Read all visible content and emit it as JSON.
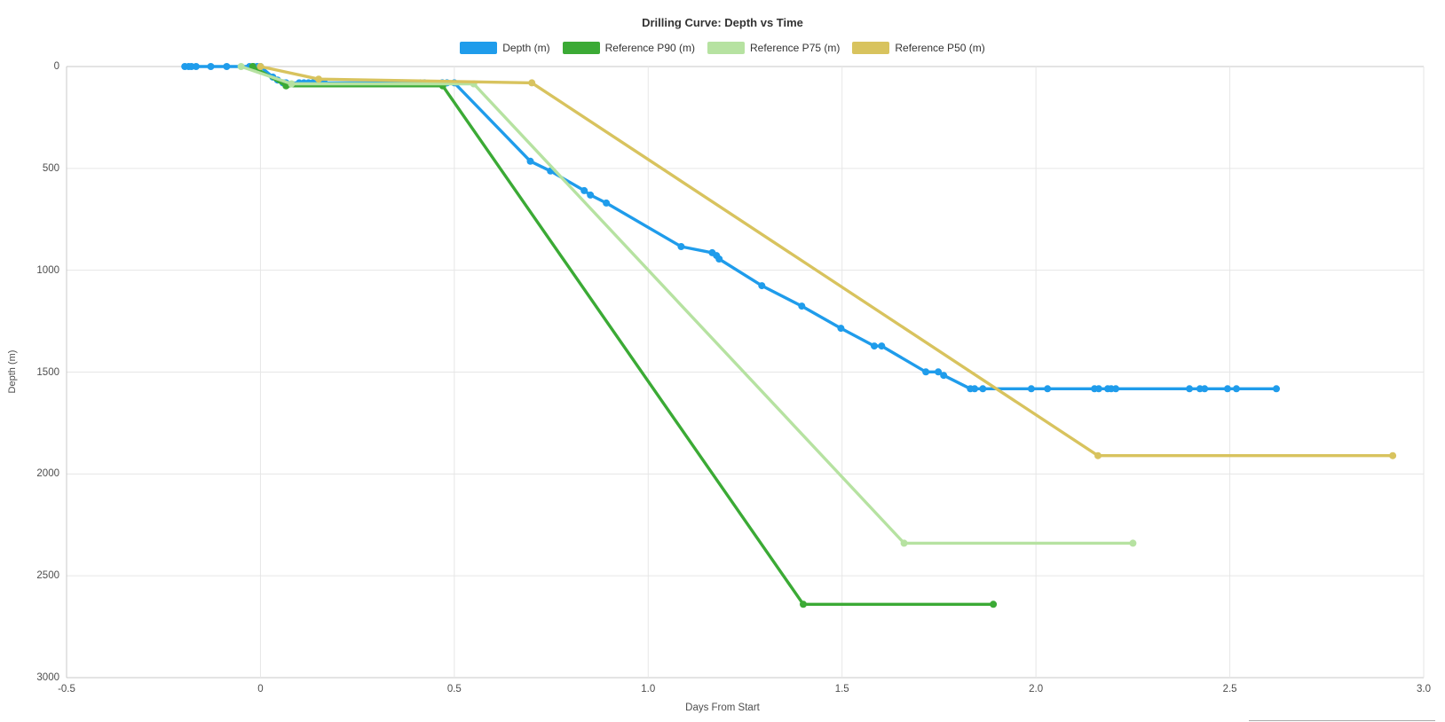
{
  "header": {
    "title": "Drilling Curve: Depth vs Time"
  },
  "axes": {
    "x": {
      "label": "Days From Start",
      "ticks": [
        "-0.5",
        "0",
        "0.5",
        "1.0",
        "1.5",
        "2.0",
        "2.5",
        "3.0"
      ],
      "range": [
        -0.5,
        3.0
      ]
    },
    "y": {
      "label": "Depth (m)",
      "ticks": [
        "0",
        "500",
        "1000",
        "1500",
        "2000",
        "2500",
        "3000"
      ],
      "range": [
        0,
        3000
      ],
      "inverted": true
    }
  },
  "colors": {
    "background": "#ffffff",
    "gridline": "#e6e6e6",
    "axis_line": "#c8c8c8",
    "tick_text": "#4d4d4d",
    "title_text": "#333333"
  },
  "chart_data": {
    "type": "line",
    "title": "Drilling Curve: Depth vs Time",
    "xlabel": "Days From Start",
    "ylabel": "Depth (m)",
    "xlim": [
      -0.5,
      3.0
    ],
    "ylim": [
      0,
      3000
    ],
    "y_axis_inverted": true,
    "grid": true,
    "legend_position": "top",
    "series": [
      {
        "name": "Depth (m)",
        "color": "#1f9ceb",
        "marker_all_points": true,
        "points": [
          [
            -0.195,
            0
          ],
          [
            -0.185,
            0
          ],
          [
            -0.178,
            0
          ],
          [
            -0.166,
            0
          ],
          [
            -0.128,
            0
          ],
          [
            -0.087,
            0
          ],
          [
            -0.028,
            0
          ],
          [
            -0.018,
            0
          ],
          [
            -0.008,
            0
          ],
          [
            0.0,
            0
          ],
          [
            0.032,
            52
          ],
          [
            0.044,
            66
          ],
          [
            0.058,
            80
          ],
          [
            0.066,
            80
          ],
          [
            0.1,
            80
          ],
          [
            0.112,
            80
          ],
          [
            0.124,
            80
          ],
          [
            0.135,
            80
          ],
          [
            0.147,
            80
          ],
          [
            0.165,
            80
          ],
          [
            0.313,
            80
          ],
          [
            0.329,
            80
          ],
          [
            0.343,
            80
          ],
          [
            0.359,
            80
          ],
          [
            0.366,
            80
          ],
          [
            0.412,
            80
          ],
          [
            0.423,
            80
          ],
          [
            0.469,
            80
          ],
          [
            0.481,
            80
          ],
          [
            0.5,
            80
          ],
          [
            0.696,
            465
          ],
          [
            0.748,
            513
          ],
          [
            0.835,
            609
          ],
          [
            0.851,
            631
          ],
          [
            0.892,
            670
          ],
          [
            1.085,
            884
          ],
          [
            1.165,
            914
          ],
          [
            1.176,
            928
          ],
          [
            1.183,
            945
          ],
          [
            1.293,
            1076
          ],
          [
            1.396,
            1176
          ],
          [
            1.497,
            1285
          ],
          [
            1.583,
            1372
          ],
          [
            1.602,
            1372
          ],
          [
            1.716,
            1499
          ],
          [
            1.748,
            1499
          ],
          [
            1.762,
            1516
          ],
          [
            1.831,
            1582
          ],
          [
            1.842,
            1582
          ],
          [
            1.863,
            1582
          ],
          [
            1.988,
            1582
          ],
          [
            2.03,
            1582
          ],
          [
            2.151,
            1582
          ],
          [
            2.162,
            1582
          ],
          [
            2.185,
            1582
          ],
          [
            2.194,
            1582
          ],
          [
            2.206,
            1582
          ],
          [
            2.396,
            1582
          ],
          [
            2.423,
            1582
          ],
          [
            2.435,
            1582
          ],
          [
            2.494,
            1582
          ],
          [
            2.517,
            1582
          ],
          [
            2.62,
            1582
          ]
        ]
      },
      {
        "name": "Reference P90 (m)",
        "color": "#3baa35",
        "marker_all_points": true,
        "points": [
          [
            -0.02,
            0
          ],
          [
            0.066,
            95
          ],
          [
            0.47,
            95
          ],
          [
            1.4,
            2640
          ],
          [
            1.89,
            2640
          ]
        ]
      },
      {
        "name": "Reference P75 (m)",
        "color": "#b6e2a1",
        "marker_all_points": true,
        "points": [
          [
            -0.05,
            0
          ],
          [
            0.08,
            85
          ],
          [
            0.55,
            85
          ],
          [
            1.66,
            2340
          ],
          [
            2.25,
            2340
          ]
        ]
      },
      {
        "name": "Reference P50 (m)",
        "color": "#d8c35e",
        "marker_all_points": true,
        "points": [
          [
            0.0,
            0
          ],
          [
            0.15,
            62
          ],
          [
            0.7,
            80
          ],
          [
            2.16,
            1910
          ],
          [
            2.92,
            1910
          ]
        ]
      }
    ]
  }
}
